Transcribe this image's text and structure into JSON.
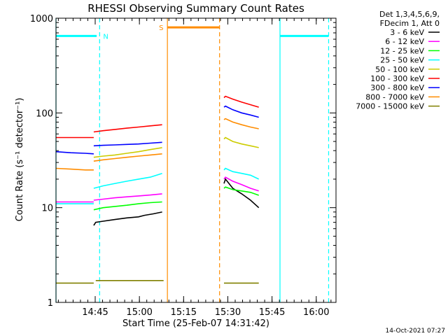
{
  "chart_data": {
    "type": "line",
    "title": "RHESSI Observing Summary Count Rates",
    "xlabel": "Start Time (25-Feb-07 14:31:42)",
    "ylabel": "Count Rate (s⁻¹ detector⁻¹)",
    "yscale": "log",
    "ylim": [
      1,
      1000
    ],
    "xlim_minutes": [
      0,
      95
    ],
    "x_ticks": [
      {
        "label": "14:45",
        "min": 13.3
      },
      {
        "label": "15:00",
        "min": 28.3
      },
      {
        "label": "15:15",
        "min": 43.3
      },
      {
        "label": "15:30",
        "min": 58.3
      },
      {
        "label": "15:45",
        "min": 73.3
      },
      {
        "label": "16:00",
        "min": 88.3
      }
    ],
    "y_ticks": [
      {
        "label": "1",
        "value": 1
      },
      {
        "label": "10",
        "value": 10
      },
      {
        "label": "100",
        "value": 100
      },
      {
        "label": "1000",
        "value": 1000
      }
    ],
    "legend": {
      "header": [
        "Det 1,3,4,5,6,9,",
        "FDecim 1, Att 0"
      ],
      "position": "right"
    },
    "series": [
      {
        "name": "3 - 6 keV",
        "color": "#000000",
        "segments": [
          {
            "x": [
              12.8,
              13.5,
              16,
              20,
              24,
              28,
              30,
              33,
              36
            ],
            "y": [
              6.5,
              7.0,
              7.2,
              7.5,
              7.8,
              8.0,
              8.3,
              8.6,
              9.0
            ]
          },
          {
            "x": [
              57,
              57.5,
              60,
              63,
              66,
              68.8
            ],
            "y": [
              18,
              20,
              16,
              14,
              12,
              10
            ]
          }
        ]
      },
      {
        "name": "6 - 12 keV",
        "color": "#ff00ff",
        "segments": [
          {
            "x": [
              0,
              5,
              10,
              12.8
            ],
            "y": [
              11.5,
              11.5,
              11.5,
              11.5
            ]
          },
          {
            "x": [
              12.8,
              16,
              20,
              24,
              28,
              32,
              36
            ],
            "y": [
              12,
              12.3,
              12.7,
              13.0,
              13.3,
              13.6,
              14
            ]
          },
          {
            "x": [
              57,
              57.5,
              60,
              63,
              66,
              68.8
            ],
            "y": [
              20,
              21,
              19,
              17.5,
              16,
              15
            ]
          }
        ]
      },
      {
        "name": "12 - 25 keV",
        "color": "#00ff00",
        "segments": [
          {
            "x": [
              12.8,
              16,
              20,
              24,
              28,
              32,
              36
            ],
            "y": [
              9.5,
              10,
              10.3,
              10.6,
              11,
              11.3,
              11.5
            ]
          },
          {
            "x": [
              57,
              57.5,
              60,
              63,
              66,
              68.8
            ],
            "y": [
              16,
              16.5,
              15.5,
              15,
              14.5,
              13.5
            ]
          }
        ]
      },
      {
        "name": "25 - 50 keV",
        "color": "#00ffff",
        "segments": [
          {
            "x": [
              0,
              5,
              10,
              12.8
            ],
            "y": [
              11,
              11,
              11,
              11
            ]
          },
          {
            "x": [
              12.8,
              16,
              20,
              24,
              28,
              32,
              36
            ],
            "y": [
              16,
              17,
              18,
              19,
              20,
              21,
              23
            ]
          },
          {
            "x": [
              57,
              57.5,
              60,
              63,
              66,
              68.8
            ],
            "y": [
              25,
              26,
              24,
              23,
              22,
              20
            ]
          }
        ]
      },
      {
        "name": "50 - 100 keV",
        "color": "#cccc00",
        "segments": [
          {
            "x": [
              12.8,
              16,
              20,
              24,
              28,
              32,
              36
            ],
            "y": [
              34,
              35,
              36,
              37.5,
              39,
              41,
              43
            ]
          },
          {
            "x": [
              57,
              57.5,
              60,
              63,
              66,
              68.8
            ],
            "y": [
              53,
              55,
              50,
              47,
              45,
              43
            ]
          }
        ]
      },
      {
        "name": "100 - 300 keV",
        "color": "#ff0000",
        "segments": [
          {
            "x": [
              0,
              5,
              10,
              12.8
            ],
            "y": [
              55,
              55,
              55,
              55
            ]
          },
          {
            "x": [
              12.8,
              16,
              20,
              24,
              28,
              32,
              36
            ],
            "y": [
              63,
              65,
              67,
              69,
              71,
              73,
              75
            ]
          },
          {
            "x": [
              57,
              57.5,
              60,
              63,
              66,
              68.8
            ],
            "y": [
              145,
              150,
              140,
              130,
              122,
              115
            ]
          }
        ]
      },
      {
        "name": "300 - 800 keV",
        "color": "#0000ff",
        "segments": [
          {
            "x": [
              0,
              5,
              10,
              12.8
            ],
            "y": [
              39,
              38,
              37.5,
              37
            ]
          },
          {
            "x": [
              12.8,
              16,
              20,
              24,
              28,
              32,
              36
            ],
            "y": [
              45,
              45.5,
              46,
              46.5,
              47,
              48,
              49
            ]
          },
          {
            "x": [
              57,
              57.5,
              60,
              63,
              66,
              68.8
            ],
            "y": [
              115,
              118,
              108,
              100,
              95,
              90
            ]
          }
        ]
      },
      {
        "name": "800 - 7000 keV",
        "color": "#ff8c00",
        "segments": [
          {
            "x": [
              0,
              5,
              10,
              12.8
            ],
            "y": [
              26,
              25.5,
              25,
              25
            ]
          },
          {
            "x": [
              12.8,
              16,
              20,
              24,
              28,
              32,
              36
            ],
            "y": [
              31,
              32,
              33,
              34,
              35,
              36,
              37
            ]
          },
          {
            "x": [
              57,
              57.5,
              60,
              63,
              66,
              68.8
            ],
            "y": [
              85,
              87,
              80,
              75,
              71,
              68
            ]
          }
        ]
      },
      {
        "name": "7000 - 15000 keV",
        "color": "#808000",
        "segments": [
          {
            "x": [
              0,
              5,
              10,
              12.8
            ],
            "y": [
              1.6,
              1.6,
              1.6,
              1.6
            ]
          },
          {
            "x": [
              13.5,
              18,
              24,
              30,
              36.5
            ],
            "y": [
              1.7,
              1.7,
              1.7,
              1.7,
              1.7
            ]
          },
          {
            "x": [
              57,
              60,
              64,
              68.8
            ],
            "y": [
              1.6,
              1.6,
              1.6,
              1.6
            ]
          }
        ]
      }
    ],
    "flag_lines": [
      {
        "label": "",
        "color": "#00ffff",
        "level": 650,
        "x_start": 0,
        "x_end": 13.8
      },
      {
        "label": "N",
        "color": "#00ffff",
        "x": 14.8,
        "style": "dashed"
      },
      {
        "label": "S",
        "color": "#ff8c00",
        "level": 800,
        "x_start": 37.8,
        "x_end": 55.5
      },
      {
        "label": "",
        "color": "#ff8c00",
        "x": 37.8,
        "style": "solid"
      },
      {
        "label": "",
        "color": "#ff8c00",
        "x": 55.5,
        "style": "dashed"
      },
      {
        "label": "",
        "color": "#00ffff",
        "level": 650,
        "x_start": 76,
        "x_end": 92.5
      },
      {
        "label": "",
        "color": "#00ffff",
        "x": 76,
        "style": "solid"
      },
      {
        "label": "",
        "color": "#00ffff",
        "x": 92.5,
        "style": "dashed"
      },
      {
        "label": "",
        "color": "#00ffff",
        "x": 0,
        "style": "solid"
      }
    ],
    "footer_date": "14-Oct-2021 07:27"
  }
}
